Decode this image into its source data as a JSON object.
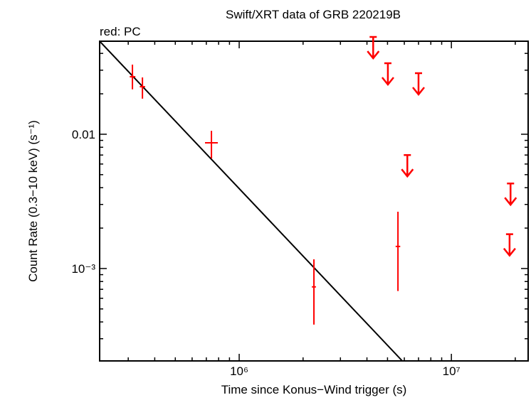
{
  "chart_data": {
    "type": "scatter",
    "title": "Swift/XRT data of GRB 220219B",
    "subtitle": "red: PC",
    "x_label": "Time since Konus−Wind trigger (s)",
    "y_label": "Count Rate (0.3−10 keV) (s⁻¹)",
    "log_x": true,
    "log_y": true,
    "xlim": [
      220000,
      23000000
    ],
    "ylim": [
      0.000205,
      0.0493
    ],
    "xticks": [
      {
        "value": 1000000,
        "label": "10⁶"
      },
      {
        "value": 10000000,
        "label": "10⁷"
      }
    ],
    "xminorticks": [
      300000,
      400000,
      500000,
      600000,
      700000,
      800000,
      900000,
      2000000,
      3000000,
      4000000,
      5000000,
      6000000,
      7000000,
      8000000,
      9000000,
      20000000
    ],
    "yticks": [
      {
        "value": 0.001,
        "label": "10⁻³"
      },
      0.01
    ],
    "yminorticks": [
      0.0003,
      0.0004,
      0.0005,
      0.0006,
      0.0007,
      0.0008,
      0.0009,
      0.002,
      0.003,
      0.004,
      0.005,
      0.006,
      0.007,
      0.008,
      0.009,
      0.02,
      0.03,
      0.04
    ],
    "detections": {
      "color": "#ff0000",
      "x": [
        314000,
        350000,
        740000,
        2250000,
        5600000
      ],
      "x_low": [
        305000,
        340000,
        690000,
        2200000,
        5460000
      ],
      "x_high": [
        324000,
        360000,
        793000,
        2300000,
        5740000
      ],
      "values": [
        0.0268,
        0.0226,
        0.00864,
        0.00073,
        0.00146
      ],
      "y_low": [
        0.0216,
        0.0184,
        0.0066,
        0.000382,
        0.00068
      ],
      "y_high": [
        0.033,
        0.0265,
        0.0106,
        0.00117,
        0.00265
      ]
    },
    "upper_limits": {
      "color": "#ff0000",
      "x": [
        4280000,
        5020000,
        7000000,
        6200000,
        19000000,
        18800000
      ],
      "values": [
        0.053,
        0.0338,
        0.0285,
        0.007,
        0.0043,
        0.0018
      ]
    },
    "model": {
      "color": "#000000",
      "x": [
        220000,
        5870000
      ],
      "values": [
        0.0493,
        0.000205
      ]
    }
  }
}
